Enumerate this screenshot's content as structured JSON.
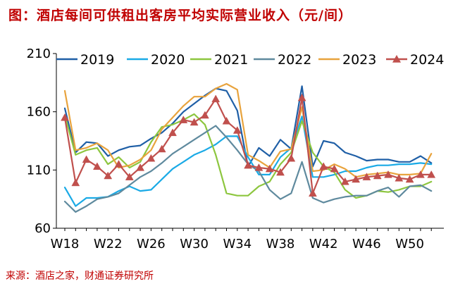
{
  "title": "图：酒店每间可供租出客房平均实际营业收入（元/间）",
  "source": "来源：酒店之家，财通证券研究所",
  "chart_data": {
    "type": "line",
    "title": "图：酒店每间可供租出客房平均实际营业收入（元/间）",
    "xlabel": "",
    "ylabel": "",
    "ylim": [
      60,
      210
    ],
    "yticks": [
      60,
      110,
      160,
      210
    ],
    "grid": false,
    "legend_position": "top",
    "x": [
      "W18",
      "W19",
      "W20",
      "W21",
      "W22",
      "W23",
      "W24",
      "W25",
      "W26",
      "W27",
      "W28",
      "W29",
      "W30",
      "W31",
      "W32",
      "W33",
      "W34",
      "W35",
      "W36",
      "W37",
      "W38",
      "W39",
      "W40",
      "W41",
      "W42",
      "W43",
      "W44",
      "W45",
      "W46",
      "W47",
      "W48",
      "W49",
      "W50",
      "W51",
      "W52"
    ],
    "xtick_labels": [
      "W18",
      "W22",
      "W26",
      "W30",
      "W34",
      "W38",
      "W42",
      "W46",
      "W50"
    ],
    "series": [
      {
        "name": "2019",
        "color": "#1f5fa6",
        "marker": "none",
        "values": [
          163,
          125,
          134,
          133,
          122,
          127,
          130,
          131,
          137,
          142,
          150,
          160,
          167,
          174,
          180,
          178,
          161,
          113,
          129,
          122,
          136,
          128,
          182,
          113,
          135,
          133,
          125,
          122,
          118,
          119,
          119,
          117,
          117,
          122,
          116
        ]
      },
      {
        "name": "2020",
        "color": "#1aaae6",
        "marker": "none",
        "values": [
          95,
          79,
          86,
          86,
          87,
          92,
          96,
          92,
          93,
          102,
          111,
          117,
          123,
          127,
          132,
          139,
          139,
          121,
          106,
          106,
          121,
          129,
          156,
          104,
          104,
          106,
          109,
          109,
          112,
          114,
          114,
          115,
          115,
          116,
          115
        ]
      },
      {
        "name": "2021",
        "color": "#8dc63f",
        "marker": "none",
        "values": [
          157,
          123,
          127,
          129,
          115,
          121,
          112,
          117,
          134,
          147,
          149,
          153,
          158,
          149,
          123,
          90,
          88,
          88,
          96,
          100,
          115,
          125,
          152,
          125,
          113,
          108,
          93,
          86,
          88,
          92,
          91,
          93,
          96,
          96,
          100
        ]
      },
      {
        "name": "2022",
        "color": "#5f8a9e",
        "marker": "none",
        "values": [
          83,
          74,
          79,
          85,
          87,
          90,
          97,
          104,
          109,
          116,
          124,
          130,
          136,
          142,
          148,
          138,
          127,
          115,
          109,
          93,
          85,
          90,
          117,
          86,
          82,
          85,
          87,
          88,
          88,
          92,
          95,
          87,
          96,
          97,
          92
        ]
      },
      {
        "name": "2023",
        "color": "#e8a33d",
        "marker": "none",
        "values": [
          178,
          127,
          129,
          133,
          127,
          112,
          114,
          119,
          127,
          145,
          155,
          165,
          173,
          173,
          180,
          184,
          179,
          123,
          118,
          112,
          126,
          128,
          164,
          109,
          110,
          115,
          111,
          104,
          106,
          107,
          108,
          106,
          106,
          107,
          124
        ]
      },
      {
        "name": "2024",
        "color": "#c0504d",
        "marker": "triangle",
        "values": [
          155,
          99,
          119,
          113,
          105,
          115,
          104,
          112,
          120,
          128,
          142,
          153,
          151,
          157,
          171,
          152,
          144,
          114,
          112,
          111,
          108,
          120,
          172,
          90,
          113,
          111,
          100,
          102,
          104,
          105,
          106,
          103,
          102,
          106,
          106
        ]
      }
    ]
  }
}
